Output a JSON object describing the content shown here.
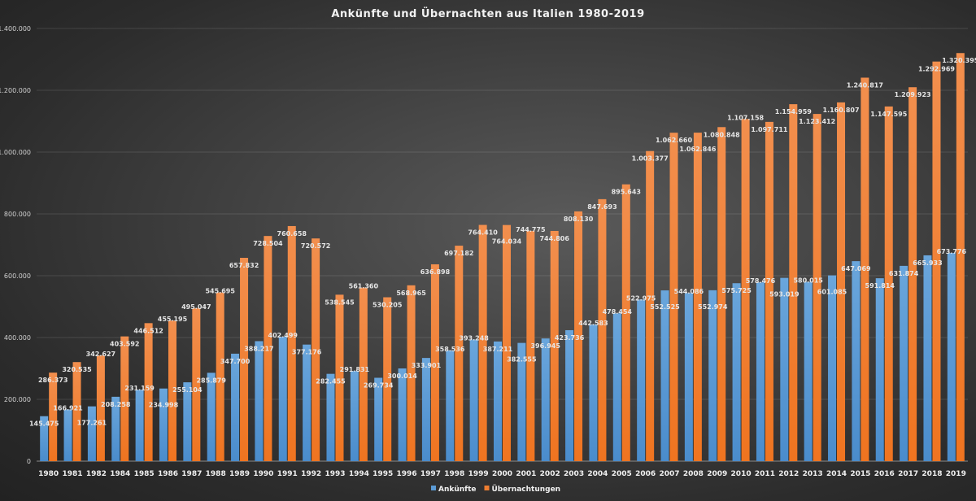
{
  "chart_data": {
    "type": "bar",
    "title": "Ankünfte und Übernachten aus Italien 1980-2019",
    "xlabel": "",
    "ylabel": "",
    "ylim": [
      0,
      1400000
    ],
    "yticks": [
      0,
      200000,
      400000,
      600000,
      800000,
      1000000,
      1200000,
      1400000
    ],
    "ytick_labels": [
      "0",
      "200.000",
      "400.000",
      "600.000",
      "800.000",
      "1.000.000",
      "1.200.000",
      "1.400.000"
    ],
    "grid": true,
    "legend_position": "bottom",
    "categories": [
      "1980",
      "1981",
      "1982",
      "1984",
      "1985",
      "1986",
      "1987",
      "1988",
      "1989",
      "1990",
      "1991",
      "1992",
      "1993",
      "1994",
      "1995",
      "1996",
      "1997",
      "1998",
      "1999",
      "2000",
      "2001",
      "2002",
      "2003",
      "2004",
      "2005",
      "2006",
      "2007",
      "2008",
      "2009",
      "2010",
      "2011",
      "2012",
      "2013",
      "2014",
      "2015",
      "2016",
      "2017",
      "2018",
      "2019"
    ],
    "series": [
      {
        "name": "Ankünfte",
        "color": "#5b9bd5",
        "values": [
          145475,
          166921,
          177261,
          208258,
          231159,
          234998,
          255104,
          285879,
          347700,
          388217,
          402499,
          377176,
          282455,
          291831,
          269734,
          300014,
          333901,
          358536,
          393248,
          387211,
          382555,
          396945,
          423736,
          442583,
          478454,
          522975,
          552525,
          544086,
          552974,
          575725,
          578476,
          593019,
          580015,
          601085,
          647069,
          591814,
          631874,
          665933,
          673776
        ]
      },
      {
        "name": "Übernachtungen",
        "color": "#ed7d31",
        "values": [
          286373,
          320535,
          342627,
          403592,
          446512,
          455195,
          495047,
          545695,
          657832,
          728504,
          760658,
          720572,
          538545,
          561360,
          530205,
          568965,
          636898,
          697182,
          764410,
          764034,
          744775,
          744806,
          808130,
          847693,
          895643,
          1003377,
          1062660,
          1062846,
          1080848,
          1107158,
          1097711,
          1154959,
          1123412,
          1160807,
          1240817,
          1147595,
          1209923,
          1292969,
          1320395
        ]
      }
    ]
  }
}
